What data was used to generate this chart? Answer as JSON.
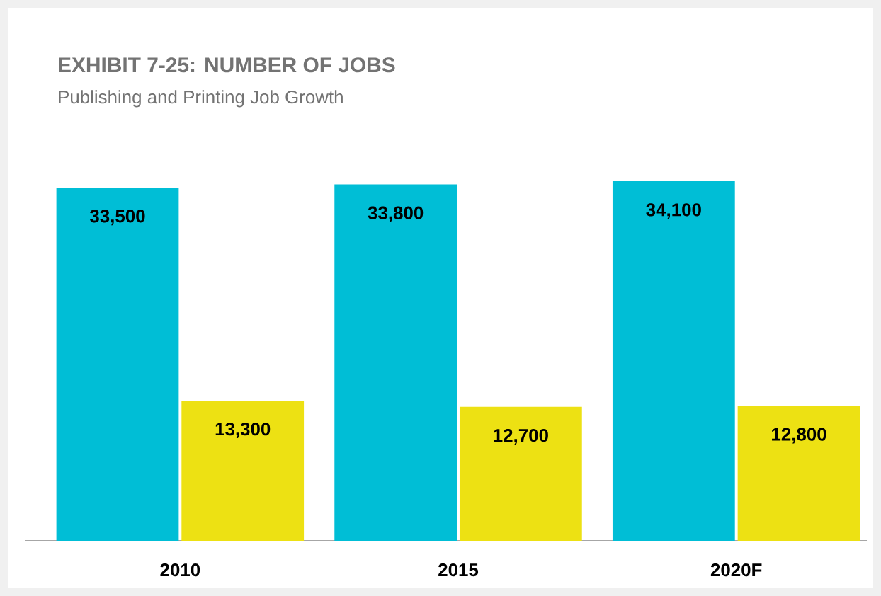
{
  "chart_data": {
    "type": "bar",
    "title": "EXHIBIT 7-25: NUMBER OF JOBS",
    "subtitle": "Publishing and Printing  Job Growth",
    "categories": [
      "2010",
      "2015",
      "2020F"
    ],
    "series": [
      {
        "color": "#00bed6",
        "values": [
          33500,
          33800,
          34100
        ],
        "value_labels": [
          "33,500",
          "33,800",
          "34,100"
        ]
      },
      {
        "color": "#ede113",
        "values": [
          13300,
          12700,
          12800
        ],
        "value_labels": [
          "13,300",
          "12,700",
          "12,800"
        ]
      }
    ]
  }
}
